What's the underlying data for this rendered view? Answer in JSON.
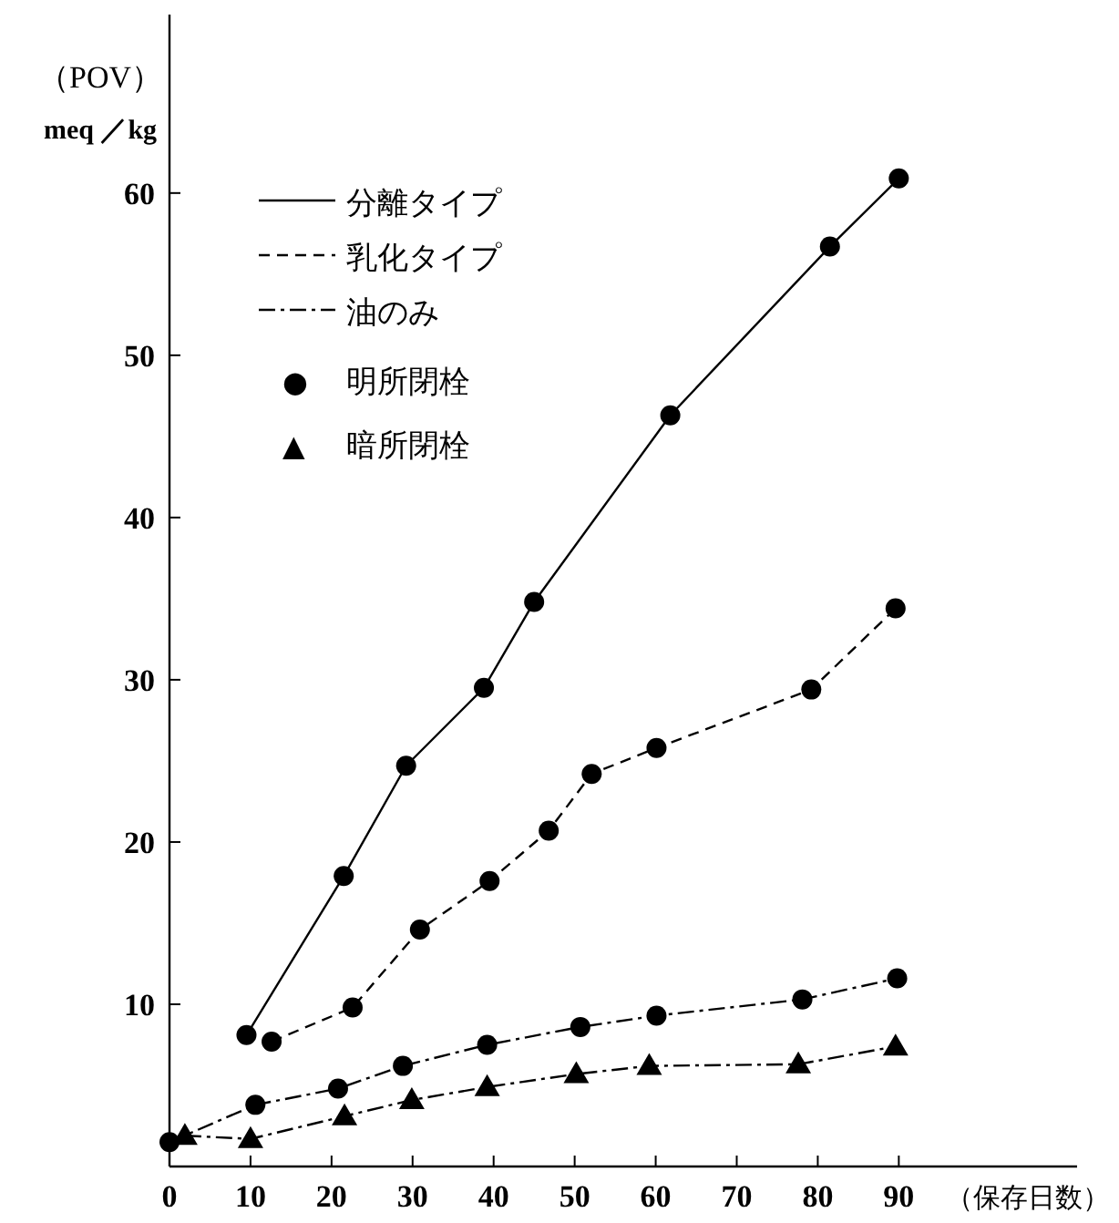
{
  "chart_data": {
    "type": "line",
    "xlabel": "（保存日数）",
    "ylabel": "（POV）\nmeq ／kg",
    "xlim": [
      0,
      112
    ],
    "ylim": [
      0,
      71
    ],
    "xticks": [
      0,
      10,
      20,
      30,
      40,
      50,
      60,
      70,
      80,
      90
    ],
    "yticks": [
      10,
      20,
      30,
      40,
      50,
      60
    ],
    "grid": false,
    "legend": "top left",
    "series": [
      {
        "name": "分離タイプ",
        "color": "#000000",
        "line_style": "solid",
        "marker": "circle",
        "x": [
          9.5,
          21.5,
          29.2,
          38.8,
          45,
          61.8,
          81.5,
          90
        ],
        "values": [
          8.1,
          17.9,
          24.7,
          29.5,
          34.8,
          46.3,
          56.7,
          60.9
        ]
      },
      {
        "name": "乳化タイプ",
        "color": "#000000",
        "line_style": "dashed",
        "marker": "circle",
        "x": [
          12.6,
          22.6,
          30.9,
          39.5,
          46.8,
          52.1,
          60.1,
          79.2,
          89.6
        ],
        "values": [
          7.7,
          9.8,
          14.6,
          17.6,
          20.7,
          24.2,
          25.8,
          29.4,
          34.4
        ]
      },
      {
        "name": "油のみ",
        "color": "#000000",
        "line_style": "dashdot",
        "marker": "circle",
        "x": [
          0,
          10.6,
          20.8,
          28.8,
          39.2,
          50.7,
          60.1,
          78.1,
          89.8
        ],
        "values": [
          1.5,
          3.8,
          4.8,
          6.2,
          7.5,
          8.6,
          9.3,
          10.3,
          11.6
        ]
      },
      {
        "color": "#000000",
        "line_style": "dashdot",
        "marker": "triangle",
        "x": [
          1.9,
          10,
          21.6,
          29.9,
          39.2,
          50.2,
          59.2,
          77.6,
          89.6
        ],
        "values": [
          1.9,
          1.7,
          3.1,
          4.1,
          4.9,
          5.7,
          6.2,
          6.3,
          7.4
        ]
      }
    ],
    "annotations": [
      "● 明所閉栓",
      "▲ 暗所閉栓"
    ]
  }
}
